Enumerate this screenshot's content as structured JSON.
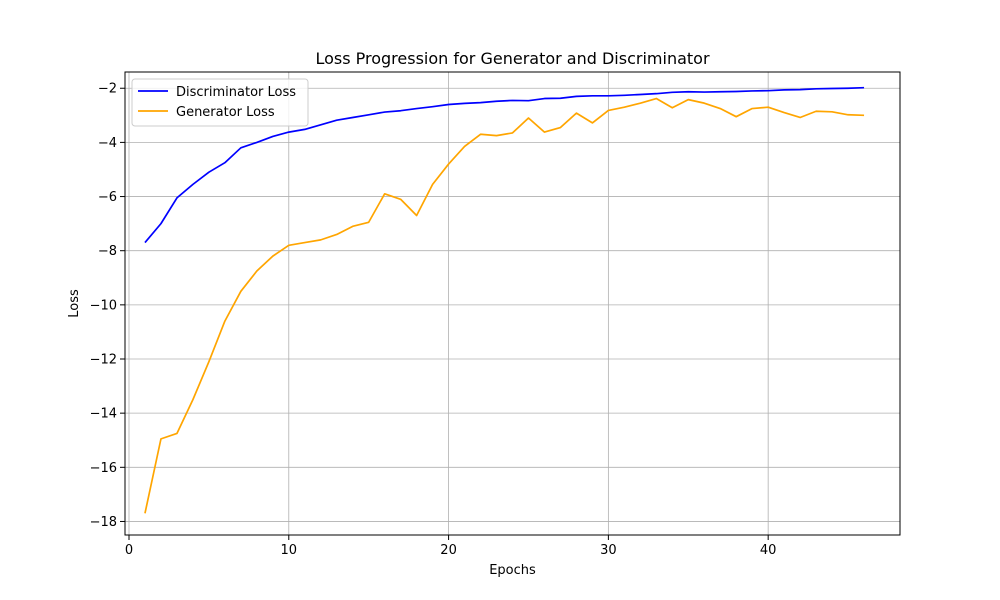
{
  "chart_data": {
    "type": "line",
    "title": "Loss Progression for Generator and Discriminator",
    "xlabel": "Epochs",
    "ylabel": "Loss",
    "xlim": [
      -0.25,
      48.25
    ],
    "ylim": [
      -18.5,
      -1.4
    ],
    "xticks": [
      0,
      10,
      20,
      30,
      40
    ],
    "yticks": [
      -18,
      -16,
      -14,
      -12,
      -10,
      -8,
      -6,
      -4,
      -2
    ],
    "grid": true,
    "legend_position": "top-left",
    "x": [
      1,
      2,
      3,
      4,
      5,
      6,
      7,
      8,
      9,
      10,
      11,
      12,
      13,
      14,
      15,
      16,
      17,
      18,
      19,
      20,
      21,
      22,
      23,
      24,
      25,
      26,
      27,
      28,
      29,
      30,
      31,
      32,
      33,
      34,
      35,
      36,
      37,
      38,
      39,
      40,
      41,
      42,
      43,
      44,
      45,
      46
    ],
    "series": [
      {
        "name": "Discriminator Loss",
        "color": "#0000ff",
        "values": [
          -7.7,
          -7.0,
          -6.05,
          -5.55,
          -5.1,
          -4.75,
          -4.2,
          -4.0,
          -3.78,
          -3.62,
          -3.52,
          -3.35,
          -3.18,
          -3.08,
          -2.98,
          -2.88,
          -2.83,
          -2.75,
          -2.68,
          -2.6,
          -2.56,
          -2.53,
          -2.48,
          -2.45,
          -2.46,
          -2.38,
          -2.37,
          -2.3,
          -2.28,
          -2.28,
          -2.26,
          -2.23,
          -2.2,
          -2.15,
          -2.13,
          -2.14,
          -2.13,
          -2.12,
          -2.1,
          -2.09,
          -2.06,
          -2.05,
          -2.02,
          -2.01,
          -2.0,
          -1.98
        ]
      },
      {
        "name": "Generator Loss",
        "color": "#ffa500",
        "values": [
          -17.7,
          -14.95,
          -14.75,
          -13.5,
          -12.1,
          -10.6,
          -9.5,
          -8.75,
          -8.2,
          -7.8,
          -7.7,
          -7.6,
          -7.4,
          -7.1,
          -6.95,
          -5.9,
          -6.1,
          -6.7,
          -5.55,
          -4.8,
          -4.15,
          -3.7,
          -3.75,
          -3.65,
          -3.1,
          -3.62,
          -3.45,
          -2.92,
          -3.28,
          -2.82,
          -2.7,
          -2.55,
          -2.38,
          -2.72,
          -2.42,
          -2.55,
          -2.75,
          -3.05,
          -2.75,
          -2.7,
          -2.9,
          -3.08,
          -2.85,
          -2.87,
          -2.98,
          -3.0
        ]
      }
    ]
  }
}
